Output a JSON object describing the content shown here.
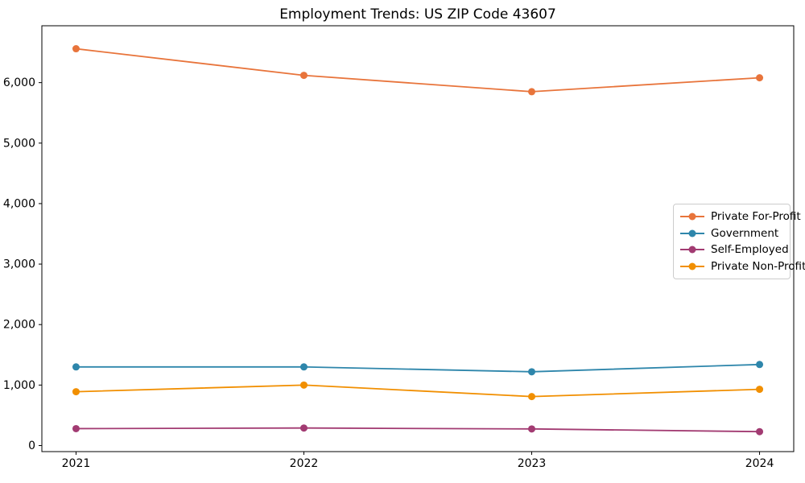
{
  "chart_data": {
    "type": "line",
    "title": "Employment Trends: US ZIP Code 43607",
    "xlabel": "",
    "ylabel": "",
    "x": [
      2021,
      2022,
      2023,
      2024
    ],
    "x_tick_labels": [
      "2021",
      "2022",
      "2023",
      "2024"
    ],
    "y_ticks": [
      0,
      1000,
      2000,
      3000,
      4000,
      5000,
      6000
    ],
    "y_tick_labels": [
      "0",
      "1,000",
      "2,000",
      "3,000",
      "4,000",
      "5,000",
      "6,000"
    ],
    "xlim": [
      2020.85,
      2024.15
    ],
    "ylim": [
      -100,
      6940
    ],
    "grid": false,
    "legend_position": "center right",
    "background_color": "#ffffff",
    "axis_color": "#000000",
    "series": [
      {
        "name": "Private For-Profit",
        "color": "#E8743B",
        "values": [
          6560,
          6120,
          5850,
          6080
        ]
      },
      {
        "name": "Government",
        "color": "#2E86AB",
        "values": [
          1300,
          1300,
          1220,
          1340
        ]
      },
      {
        "name": "Self-Employed",
        "color": "#A23B72",
        "values": [
          280,
          290,
          275,
          230
        ]
      },
      {
        "name": "Private Non-Profit",
        "color": "#F18F01",
        "values": [
          890,
          1000,
          810,
          930
        ]
      }
    ]
  }
}
